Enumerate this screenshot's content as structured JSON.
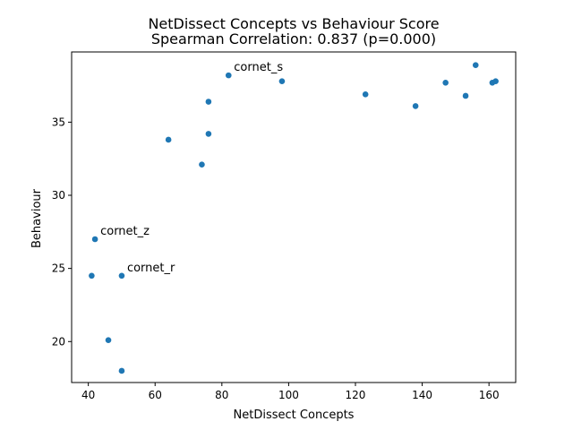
{
  "chart_data": {
    "type": "scatter",
    "title": "NetDissect Concepts vs Behaviour Score",
    "subtitle": "Spearman Correlation: 0.837 (p=0.000)",
    "xlabel": "NetDissect Concepts",
    "ylabel": "Behaviour",
    "xlim": [
      35,
      168
    ],
    "ylim": [
      17.2,
      39.8
    ],
    "xticks": [
      40,
      60,
      80,
      100,
      120,
      140,
      160
    ],
    "yticks": [
      20,
      25,
      30,
      35
    ],
    "grid": false,
    "legend": "none",
    "marker_color": "#1f77b4",
    "points": [
      {
        "x": 41,
        "y": 24.5
      },
      {
        "x": 42,
        "y": 27.0,
        "label": "cornet_z"
      },
      {
        "x": 46,
        "y": 20.1
      },
      {
        "x": 50,
        "y": 24.5,
        "label": "cornet_r"
      },
      {
        "x": 50,
        "y": 18.0
      },
      {
        "x": 64,
        "y": 33.8
      },
      {
        "x": 74,
        "y": 32.1
      },
      {
        "x": 76,
        "y": 36.4
      },
      {
        "x": 76,
        "y": 34.2
      },
      {
        "x": 82,
        "y": 38.2,
        "label": "cornet_s"
      },
      {
        "x": 98,
        "y": 37.8
      },
      {
        "x": 123,
        "y": 36.9
      },
      {
        "x": 138,
        "y": 36.1
      },
      {
        "x": 147,
        "y": 37.7
      },
      {
        "x": 153,
        "y": 36.8
      },
      {
        "x": 156,
        "y": 38.9
      },
      {
        "x": 161,
        "y": 37.7
      },
      {
        "x": 162,
        "y": 37.8
      }
    ]
  }
}
